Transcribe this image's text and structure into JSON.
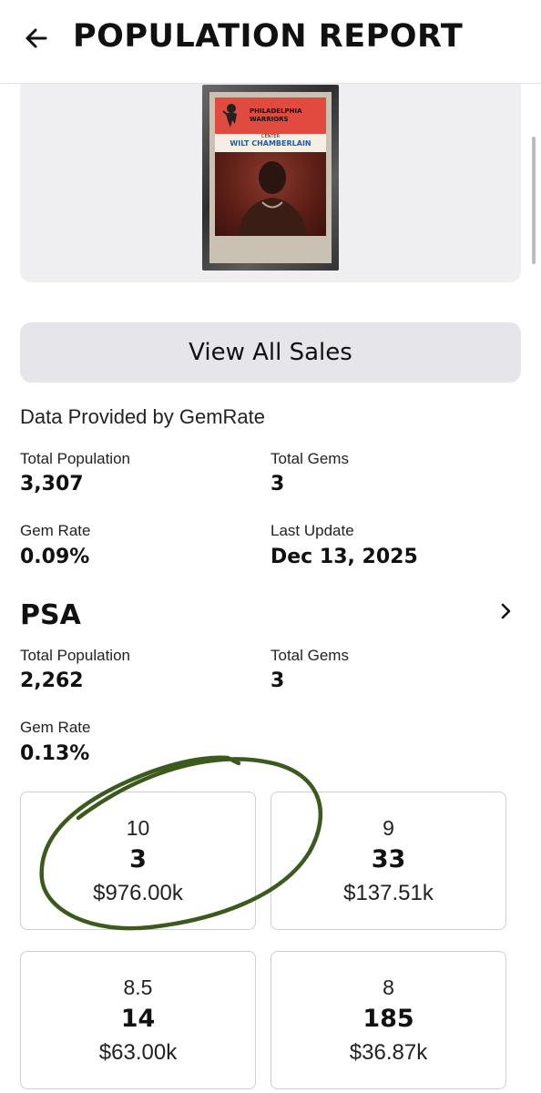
{
  "header": {
    "title": "POPULATION REPORT",
    "back_icon": "arrow-left-icon"
  },
  "card_image": {
    "team_line1": "PHILADELPHIA",
    "team_line2": "WARRIORS",
    "position": "CENTER",
    "player": "WILT CHAMBERLAIN"
  },
  "actions": {
    "view_all_sales": "View All Sales"
  },
  "provider": "Data Provided by GemRate",
  "overall": {
    "total_population_label": "Total Population",
    "total_population": "3,307",
    "total_gems_label": "Total Gems",
    "total_gems": "3",
    "gem_rate_label": "Gem Rate",
    "gem_rate": "0.09%",
    "last_update_label": "Last Update",
    "last_update": "Dec 13, 2025"
  },
  "psa": {
    "title": "PSA",
    "total_population_label": "Total Population",
    "total_population": "2,262",
    "total_gems_label": "Total Gems",
    "total_gems": "3",
    "gem_rate_label": "Gem Rate",
    "gem_rate": "0.13%",
    "grades": [
      {
        "grade": "10",
        "count": "3",
        "price": "$976.00k"
      },
      {
        "grade": "9",
        "count": "33",
        "price": "$137.51k"
      },
      {
        "grade": "8.5",
        "count": "14",
        "price": "$63.00k"
      },
      {
        "grade": "8",
        "count": "185",
        "price": "$36.87k"
      }
    ]
  },
  "colors": {
    "annotation_circle": "#3d5a1e",
    "card_red": "#e04a3f",
    "panel_bg": "#efeff1"
  }
}
